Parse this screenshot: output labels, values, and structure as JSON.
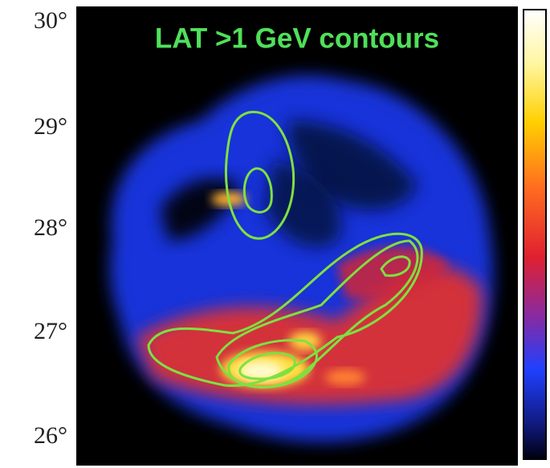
{
  "title": "LAT >1 GeV contours",
  "y_axis": {
    "ticks": [
      "30°",
      "29°",
      "28°",
      "27°",
      "26°"
    ]
  }
}
